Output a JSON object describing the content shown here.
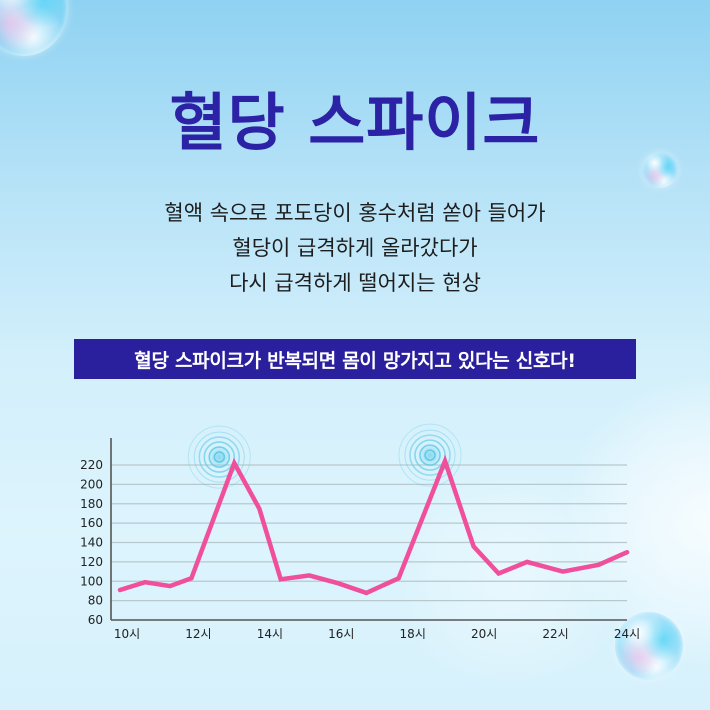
{
  "header": {
    "title": "혈당 스파이크"
  },
  "description": {
    "lines": [
      "혈액 속으로 포도당이 홍수처럼 쏟아 들어가",
      "혈당이 급격하게 올라갔다가",
      "다시 급격하게 떨어지는 현상"
    ]
  },
  "banner": {
    "text": "혈당 스파이크가 반복되면 몸이 망가지고 있다는 신호다!"
  },
  "colors": {
    "title": "#2b22a6",
    "banner_bg": "#2a1f9c",
    "line": "#ef4f9b",
    "ripple": "#5bc8e6",
    "grid": "#b7c9cc",
    "axis": "#555555"
  },
  "chart_data": {
    "type": "line",
    "title": "",
    "xlabel": "",
    "ylabel": "",
    "ylim": [
      60,
      240
    ],
    "yticks": [
      60,
      80,
      100,
      120,
      140,
      160,
      180,
      200,
      220
    ],
    "ytick_labels": [
      "60",
      "80",
      "100",
      "120",
      "140",
      "160",
      "180",
      "200",
      "220"
    ],
    "xtick_labels": [
      "10시",
      "12시",
      "14시",
      "16시",
      "18시",
      "20시",
      "22시",
      "24시"
    ],
    "grid": true,
    "legend": "none",
    "annotations": [
      "ripple-marker at first peak (~13시)",
      "ripple-marker at second peak (~19시)"
    ],
    "series": [
      {
        "name": "혈당",
        "x": [
          10,
          10.7,
          11.4,
          12,
          13.2,
          13.9,
          14.5,
          15.3,
          16.1,
          16.9,
          17.8,
          19.1,
          19.9,
          20.6,
          21.4,
          22.4,
          23.4,
          24.2
        ],
        "values": [
          91,
          99,
          95,
          103,
          222,
          175,
          102,
          106,
          98,
          88,
          103,
          224,
          136,
          108,
          120,
          110,
          117,
          130
        ]
      }
    ]
  }
}
